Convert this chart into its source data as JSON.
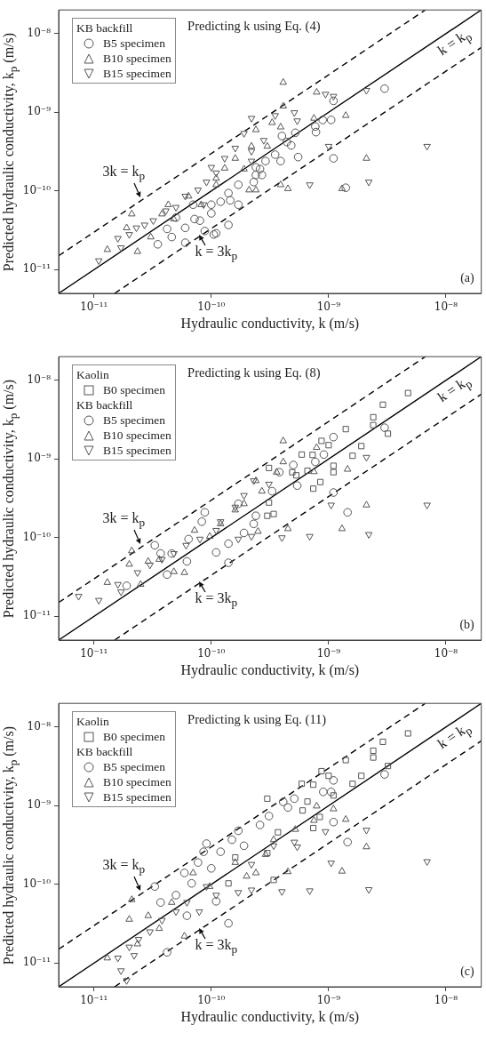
{
  "chart_data": [
    {
      "type": "scatter",
      "title": "Predicting k using Eq. (4)",
      "xlabel": "Hydraulic conductivity, k (m/s)",
      "ylabel": "Predicted hydraulic conductivity, k$_{p}$ (m/s)",
      "legend_title": "KB backfill",
      "legend": "top left",
      "log": "xy",
      "grid": false,
      "xlim": [
        5e-12,
        2e-08
      ],
      "ylim": [
        5e-12,
        2e-08
      ],
      "xticks": [
        {
          "value": 1e-11,
          "label": "10⁻¹¹"
        },
        {
          "value": 1e-10,
          "label": "10⁻¹⁰"
        },
        {
          "value": 1e-09,
          "label": "10⁻⁹"
        },
        {
          "value": 1e-08,
          "label": "10⁻⁸"
        }
      ],
      "yticks": [
        {
          "value": 1e-11,
          "label": "10⁻¹¹"
        },
        {
          "value": 1e-10,
          "label": "10⁻¹⁰"
        },
        {
          "value": 1e-09,
          "label": "10⁻⁹"
        },
        {
          "value": 1e-08,
          "label": "10⁻⁸"
        }
      ],
      "annotations": [
        "3k = k$_{p}$",
        "k = 3k$_{p}$",
        "k = k$_{p}$",
        "(a)"
      ],
      "series": [
        {
          "name": "B5 specimen",
          "marker": "circle",
          "color": "#555555",
          "x": [
            3e-09,
            1.1e-09,
            1.05e-09,
            8.9e-10,
            7.7e-10,
            7.8e-10,
            1.1e-09,
            1.4e-09,
            5.5e-10,
            5.2e-10,
            4.8e-10,
            4.4e-10,
            4e-10,
            3.5e-10,
            3.9e-10,
            2.7e-10,
            2.9e-10,
            2.6e-10,
            2.4e-10,
            2.3e-10,
            1.7e-10,
            1.45e-10,
            1.4e-10,
            1.2e-10,
            1e-10,
            8e-11,
            7.2e-11,
            8.8e-11,
            1.05e-10,
            1.1e-10,
            1.4e-10,
            7e-11,
            6e-11,
            5e-11,
            4.6e-11,
            3.5e-11,
            6e-11,
            4.2e-11,
            1e-10,
            1.7e-10,
            2.4e-10
          ],
          "values": [
            2e-09,
            1.4e-09,
            8e-10,
            8e-10,
            6.6e-10,
            5.6e-10,
            2.6e-10,
            1.1e-10,
            2.7e-10,
            5.5e-10,
            3.8e-10,
            4.2e-10,
            5e-10,
            2.9e-10,
            2.4e-10,
            1.6e-10,
            2.4e-10,
            1.9e-10,
            1.6e-10,
            1.3e-10,
            1.2e-10,
            7.6e-11,
            9.4e-11,
            7.3e-11,
            5.2e-11,
            4.2e-11,
            4.4e-11,
            3.1e-11,
            2.8e-11,
            2.9e-11,
            3.7e-11,
            6.7e-11,
            3.4e-11,
            4.6e-11,
            2.6e-11,
            2.1e-11,
            2.2e-11,
            3.3e-11,
            6.7e-11,
            6.7e-11,
            2e-10
          ]
        },
        {
          "name": "B10 specimen",
          "marker": "triangle",
          "color": "#555555",
          "x": [
            4.1e-10,
            7.9e-10,
            4.1e-10,
            1.4e-09,
            7.5e-10,
            2.1e-09,
            1.3e-09,
            4.5e-10,
            3.9e-10,
            2.4e-10,
            2.1e-10,
            3.9e-10,
            3.3e-10,
            2.4e-10,
            3e-10,
            2.2e-10,
            1.6e-10,
            1.9e-10,
            1.3e-10,
            1.1e-10,
            8.2e-11,
            6.4e-11,
            4.8e-11,
            3.8e-11,
            2.1e-11,
            1.9e-11,
            1.3e-11,
            2.35e-11,
            3.05e-11,
            4.3e-11,
            1.1e-10
          ],
          "values": [
            2.4e-09,
            1.8e-09,
            1.2e-09,
            9.1e-10,
            8.4e-10,
            2.6e-10,
            1.07e-10,
            1.07e-10,
            1.2e-10,
            1.03e-10,
            1.03e-10,
            6.5e-10,
            7.4e-10,
            6e-10,
            3.7e-10,
            3.7e-10,
            2.6e-10,
            1.9e-10,
            1.95e-10,
            1.2e-10,
            6.7e-11,
            8.6e-11,
            4.4e-11,
            5.1e-11,
            5.1e-11,
            3.4e-11,
            1.8e-11,
            1.7e-11,
            2.6e-11,
            6.7e-11,
            1.45e-10
          ]
        },
        {
          "name": "B15 specimen",
          "marker": "triangle-down",
          "color": "#555555",
          "x": [
            6.9e-09,
            2.1e-09,
            9.4e-10,
            1.1e-09,
            2.2e-09,
            1e-09,
            6.9e-10,
            5.1e-10,
            5.4e-10,
            3.5e-10,
            2.2e-10,
            1.9e-10,
            2.8e-10,
            2.2e-10,
            1.6e-10,
            1.3e-10,
            1e-10,
            1.1e-10,
            9.1e-11,
            7.7e-11,
            6e-11,
            5e-11,
            4.1e-11,
            3.2e-11,
            2.7e-11,
            2.3e-11,
            2e-11,
            1.6e-11,
            1.7e-11,
            1.1e-11,
            8.6e-11,
            2.2e-10
          ],
          "values": [
            3.7e-10,
            1.9e-09,
            1.7e-09,
            1.6e-09,
            1.3e-10,
            3.7e-10,
            1.2e-10,
            9.9e-10,
            7.8e-10,
            9.1e-10,
            8.4e-10,
            5.4e-10,
            4.4e-10,
            3.2e-10,
            3.5e-10,
            2.6e-10,
            2e-10,
            1.7e-10,
            1.3e-10,
            1.03e-10,
            8.6e-11,
            6.2e-11,
            5.6e-11,
            4.2e-11,
            3.7e-11,
            3.4e-11,
            2.8e-11,
            2.5e-11,
            1.9e-11,
            1.3e-11,
            6.7e-11,
            2.4e-10
          ]
        },
        {
          "type": "line",
          "line_style": "solid",
          "marker": "none",
          "color": "#000000",
          "x": [
            5e-12,
            2e-08
          ],
          "values": [
            5e-12,
            2e-08
          ]
        },
        {
          "type": "line",
          "line_style": "dashed",
          "marker": "none",
          "color": "#000000",
          "x": [
            5e-12,
            6.67e-09
          ],
          "values": [
            1.5e-11,
            2e-08
          ]
        },
        {
          "type": "line",
          "line_style": "dashed",
          "marker": "none",
          "color": "#000000",
          "x": [
            1.5e-11,
            2e-08
          ],
          "values": [
            5e-12,
            6.67e-09
          ]
        }
      ]
    },
    {
      "type": "scatter",
      "title": "Predicting k using Eq. (8)",
      "xlabel": "Hydraulic conductivity, k (m/s)",
      "ylabel": "Predicted hydraulic conductivity, k$_{p}$ (m/s)",
      "legend_title": "KB backfill",
      "legend": "top left",
      "log": "xy",
      "grid": false,
      "xlim": [
        5e-12,
        2e-08
      ],
      "ylim": [
        5e-12,
        2e-08
      ],
      "xticks": [
        {
          "value": 1e-11,
          "label": "10⁻¹¹"
        },
        {
          "value": 1e-10,
          "label": "10⁻¹⁰"
        },
        {
          "value": 1e-09,
          "label": "10⁻⁹"
        },
        {
          "value": 1e-08,
          "label": "10⁻⁸"
        }
      ],
      "yticks": [
        {
          "value": 1e-11,
          "label": "10⁻¹¹"
        },
        {
          "value": 1e-10,
          "label": "10⁻¹⁰"
        },
        {
          "value": 1e-09,
          "label": "10⁻⁹"
        },
        {
          "value": 1e-08,
          "label": "10⁻⁸"
        }
      ],
      "annotations": [
        "3k = k$_{p}$",
        "k = 3k$_{p}$",
        "k = k$_{p}$",
        "(b)",
        "Kaolin"
      ],
      "series": [
        {
          "name": "B0 specimen",
          "marker": "square",
          "color": "#555555",
          "x": [
            4.75e-09,
            2.9e-09,
            2.4e-09,
            2.4e-09,
            3.2e-09,
            1.4e-09,
            1.9e-09,
            8.7e-10,
            1e-09,
            1.6e-09,
            5.9e-10,
            7.3e-10,
            1.1e-09,
            1.1e-09,
            8.5e-10,
            7.4e-10,
            6.6e-10,
            5.3e-10,
            3.1e-10,
            3.1e-10,
            3e-10,
            3.4e-10,
            4.9e-10
          ],
          "values": [
            6.9e-09,
            4.9e-09,
            3.4e-09,
            2.7e-09,
            2.1e-09,
            2.4e-09,
            1.46e-09,
            1.7e-09,
            1.5e-09,
            1.1e-09,
            1.14e-09,
            1.13e-09,
            8.2e-10,
            6.8e-10,
            5.1e-10,
            4.2e-10,
            7.1e-10,
            6.2e-10,
            7.7e-10,
            2.8e-10,
            1.9e-10,
            2e-10,
            6.8e-10
          ]
        },
        {
          "name": "B5 specimen",
          "marker": "circle",
          "color": "#555555",
          "x": [
            3e-09,
            1.1e-09,
            7.7e-10,
            5e-10,
            9.1e-10,
            1.1e-09,
            1.45e-09,
            5.4e-10,
            3.8e-10,
            2.4e-10,
            2.3e-10,
            1.9e-10,
            1.4e-10,
            1.4e-10,
            1.1e-10,
            8.8e-11,
            8.3e-11,
            6.4e-11,
            4.6e-11,
            3.3e-11,
            3.7e-11,
            4.2e-11,
            6.2e-11,
            1.9e-11,
            1.7e-10,
            3.3e-10
          ],
          "values": [
            2.5e-09,
            1.9e-09,
            9.2e-10,
            8.4e-10,
            1.14e-09,
            3.75e-10,
            2.1e-10,
            4.6e-10,
            6.8e-10,
            1.9e-10,
            1.5e-10,
            1.15e-10,
            8.4e-11,
            4.8e-11,
            6.5e-11,
            2.1e-10,
            1.6e-10,
            9.6e-11,
            6.3e-11,
            8e-11,
            6.3e-11,
            3.4e-11,
            5e-11,
            2.45e-11,
            2.7e-10,
            3.9e-10
          ]
        },
        {
          "name": "B10 specimen",
          "marker": "triangle",
          "color": "#555555",
          "x": [
            4.1e-10,
            7.9e-10,
            4.1e-10,
            1.45e-09,
            7.5e-10,
            3.6e-10,
            2.1e-09,
            1.3e-09,
            4.5e-10,
            2.5e-10,
            2.4e-10,
            1.9e-10,
            1.2e-10,
            7.2e-11,
            5.9e-11,
            4.8e-11,
            2.9e-11,
            2.1e-11,
            2e-11,
            1.3e-11,
            2.5e-11,
            3.6e-11,
            9.7e-11,
            1.6e-10,
            2.7e-10
          ],
          "values": [
            1.7e-09,
            1.4e-09,
            9.2e-10,
            7.4e-10,
            6.9e-10,
            6.8e-10,
            2.6e-10,
            1.3e-10,
            1.3e-10,
            1.2e-10,
            5.3e-10,
            2.7e-10,
            1.5e-10,
            1.24e-10,
            3.6e-11,
            3.7e-11,
            5e-11,
            6.8e-11,
            4.6e-11,
            2.7e-11,
            2.55e-11,
            5.3e-11,
            1.04e-10,
            2.25e-10,
            3.9e-10
          ]
        },
        {
          "name": "B15 specimen",
          "marker": "triangle-down",
          "color": "#555555",
          "x": [
            6.9e-09,
            2.1e-09,
            1.05e-09,
            2.2e-09,
            6.9e-10,
            4e-10,
            2.2e-10,
            1.7e-10,
            2.3e-10,
            1.9e-10,
            1.6e-10,
            1.2e-10,
            1.1e-10,
            8e-11,
            6.1e-11,
            4.8e-11,
            3.8e-11,
            3e-11,
            2.35e-11,
            1.6e-11,
            1.7e-11,
            1.1e-11,
            7.4e-12,
            3.1e-10
          ],
          "values": [
            2.6e-10,
            1.05e-09,
            2.6e-10,
            1.1e-10,
            1.04e-10,
            1e-10,
            1.04e-10,
            9.6e-11,
            5.3e-10,
            3.45e-10,
            2.45e-10,
            1.6e-10,
            1.24e-10,
            9.6e-11,
            8e-11,
            6.3e-11,
            5.3e-11,
            4.5e-11,
            3.6e-11,
            2.55e-11,
            2.05e-11,
            1.6e-11,
            1.8e-11,
            4.8e-10
          ]
        },
        {
          "type": "line",
          "line_style": "solid",
          "marker": "none",
          "color": "#000000",
          "x": [
            5e-12,
            2e-08
          ],
          "values": [
            5e-12,
            2e-08
          ]
        },
        {
          "type": "line",
          "line_style": "dashed",
          "marker": "none",
          "color": "#000000",
          "x": [
            5e-12,
            6.67e-09
          ],
          "values": [
            1.5e-11,
            2e-08
          ]
        },
        {
          "type": "line",
          "line_style": "dashed",
          "marker": "none",
          "color": "#000000",
          "x": [
            1.5e-11,
            2e-08
          ],
          "values": [
            5e-12,
            6.67e-09
          ]
        }
      ]
    },
    {
      "type": "scatter",
      "title": "Predicting k using Eq. (11)",
      "xlabel": "Hydraulic conductivity, k (m/s)",
      "ylabel": "Predicted hydraulic conductivity, k$_{p}$ (m/s)",
      "legend_title": "KB backfill",
      "legend": "top left",
      "log": "xy",
      "grid": false,
      "xlim": [
        5e-12,
        2e-08
      ],
      "ylim": [
        5e-12,
        2e-08
      ],
      "xticks": [
        {
          "value": 1e-11,
          "label": "10⁻¹¹"
        },
        {
          "value": 1e-10,
          "label": "10⁻¹⁰"
        },
        {
          "value": 1e-09,
          "label": "10⁻⁹"
        },
        {
          "value": 1e-08,
          "label": "10⁻⁸"
        }
      ],
      "yticks": [
        {
          "value": 1e-11,
          "label": "10⁻¹¹"
        },
        {
          "value": 1e-10,
          "label": "10⁻¹⁰"
        },
        {
          "value": 1e-09,
          "label": "10⁻⁹"
        },
        {
          "value": 1e-08,
          "label": "10⁻⁸"
        }
      ],
      "annotations": [
        "3k = k$_{p}$",
        "k = 3k$_{p}$",
        "k = k$_{p}$",
        "(c)",
        "Kaolin"
      ],
      "series": [
        {
          "name": "B0 specimen",
          "marker": "square",
          "color": "#555555",
          "x": [
            4.75e-09,
            2.9e-09,
            2.4e-09,
            2.4e-09,
            1.4e-09,
            3.2e-09,
            8.7e-10,
            1e-09,
            1.9e-09,
            5.9e-10,
            7.4e-10,
            1.6e-09,
            1.1e-09,
            3e-10,
            6.6e-10,
            6e-10,
            8.4e-10,
            7.4e-10,
            3.7e-10,
            3e-10,
            1.4e-10,
            3.4e-10,
            1.6e-10
          ],
          "values": [
            8.3e-09,
            6.5e-09,
            5e-09,
            4.1e-09,
            3.8e-09,
            3.2e-09,
            2.75e-09,
            2.4e-09,
            2.4e-09,
            1.9e-09,
            1.85e-09,
            1.9e-09,
            1.35e-09,
            1.23e-09,
            1.13e-09,
            8.7e-10,
            7.2e-10,
            5.2e-10,
            4.6e-10,
            2.5e-10,
            1.03e-10,
            1.14e-10,
            2.2e-10
          ]
        },
        {
          "name": "B5 specimen",
          "marker": "circle",
          "color": "#555555",
          "x": [
            3e-09,
            1.1e-09,
            9e-10,
            1.05e-09,
            5.1e-10,
            4.5e-10,
            1.1e-09,
            1.45e-09,
            4.1e-10,
            3.1e-10,
            2.6e-10,
            1.7e-10,
            1.5e-10,
            9.1e-11,
            8.6e-11,
            7.7e-11,
            5.9e-11,
            6.8e-11,
            5e-11,
            1.1e-10,
            6.2e-11,
            3.7e-11,
            3.3e-11,
            1.4e-10,
            4.2e-11,
            1e-10,
            1.2e-10,
            1.9e-10
          ],
          "values": [
            2.5e-09,
            2.1e-09,
            1.5e-09,
            1.5e-09,
            1.23e-09,
            9.5e-10,
            6.2e-10,
            3.45e-10,
            1.12e-09,
            7.4e-10,
            5.7e-10,
            4.8e-10,
            3.7e-10,
            3.3e-10,
            2.6e-10,
            1.9e-10,
            1.4e-10,
            1.03e-10,
            7.3e-11,
            6.1e-11,
            4e-11,
            5.9e-11,
            9.4e-11,
            3.2e-11,
            1.37e-11,
            1.6e-10,
            2.6e-10,
            3.1e-10
          ]
        },
        {
          "name": "B10 specimen",
          "marker": "triangle",
          "color": "#555555",
          "x": [
            2.1e-09,
            1.4e-09,
            1.1e-09,
            7.5e-10,
            7.9e-10,
            5.2e-10,
            1.3e-09,
            4.5e-10,
            2.4e-10,
            2e-10,
            3.4e-10,
            2.9e-10,
            1.6e-10,
            7e-11,
            4.6e-11,
            2.9e-11,
            2.1e-11,
            2e-11,
            3.6e-11,
            5.9e-11,
            2.35e-11,
            1.3e-11,
            9.7e-11
          ],
          "values": [
            3e-10,
            6.7e-10,
            9.1e-10,
            6.5e-10,
            9.9e-10,
            5e-10,
            1.47e-10,
            1.45e-10,
            1.4e-10,
            1.27e-10,
            3.7e-10,
            2.4e-10,
            1.9e-10,
            1.4e-10,
            5.9e-11,
            4e-11,
            6.4e-11,
            3.6e-11,
            2.75e-11,
            2.2e-11,
            1.75e-11,
            1.16e-11,
            9.4e-11
          ]
        },
        {
          "name": "B15 specimen",
          "marker": "triangle-down",
          "color": "#555555",
          "x": [
            6.9e-09,
            2.1e-09,
            1.05e-09,
            2.2e-09,
            9.4e-10,
            6.9e-10,
            4e-10,
            2.2e-10,
            1.7e-10,
            5.1e-10,
            5.4e-10,
            3.4e-10,
            2.2e-10,
            1.1e-10,
            7.9e-11,
            6.2e-11,
            5e-11,
            3.8e-11,
            3e-11,
            2.4e-11,
            2e-11,
            1.6e-11,
            2.2e-11,
            1.7e-11,
            1.9e-11,
            9.1e-11
          ],
          "values": [
            1.95e-10,
            4.9e-10,
            1.87e-10,
            8.6e-11,
            4.7e-10,
            8.3e-11,
            8.1e-11,
            8.5e-11,
            7.9e-11,
            3.45e-10,
            3e-10,
            3.1e-10,
            1.8e-10,
            7.3e-11,
            4.5e-11,
            5.9e-11,
            4.5e-11,
            3.5e-11,
            2.5e-11,
            2e-11,
            1.6e-11,
            1.16e-11,
            1.25e-11,
            8e-12,
            6e-12,
            9.4e-11
          ]
        },
        {
          "type": "line",
          "line_style": "solid",
          "marker": "none",
          "color": "#000000",
          "x": [
            5e-12,
            2e-08
          ],
          "values": [
            5e-12,
            2e-08
          ]
        },
        {
          "type": "line",
          "line_style": "dashed",
          "marker": "none",
          "color": "#000000",
          "x": [
            5e-12,
            6.67e-09
          ],
          "values": [
            1.5e-11,
            2e-08
          ]
        },
        {
          "type": "line",
          "line_style": "dashed",
          "marker": "none",
          "color": "#000000",
          "x": [
            1.5e-11,
            2e-08
          ],
          "values": [
            5e-12,
            6.67e-09
          ]
        }
      ]
    }
  ]
}
